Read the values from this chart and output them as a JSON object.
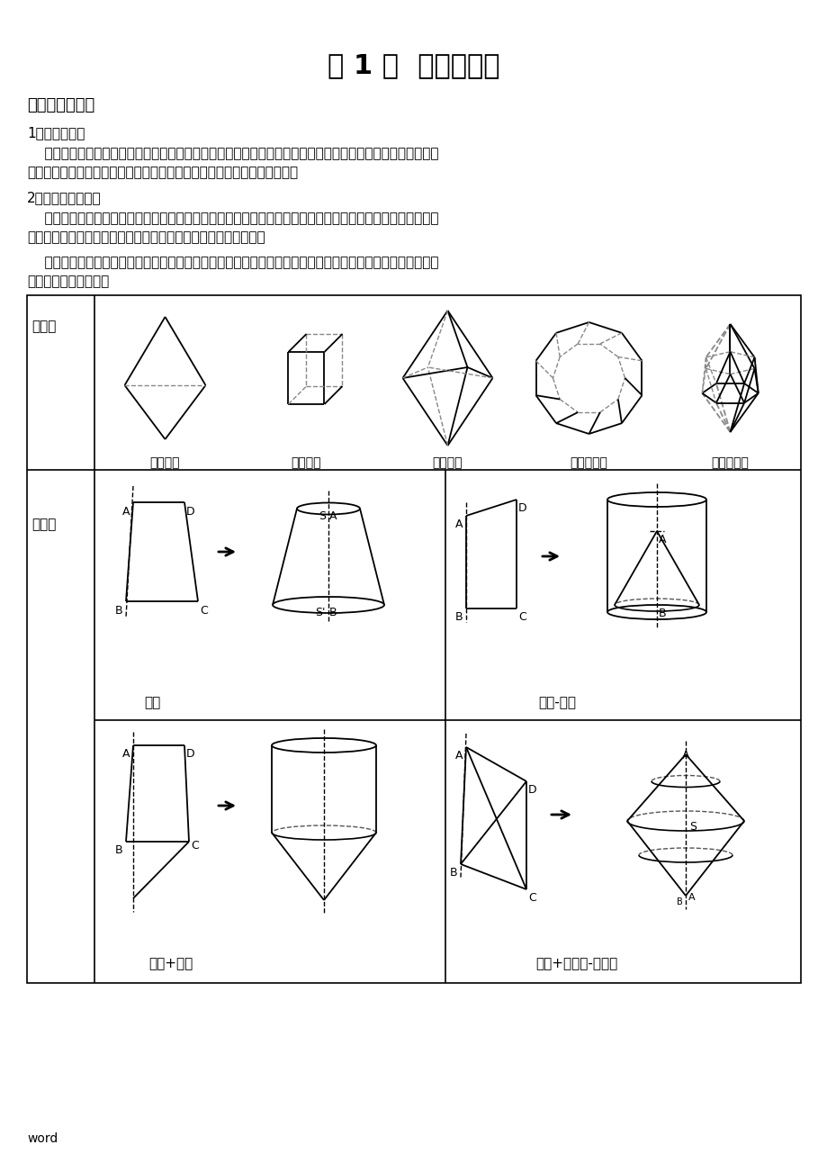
{
  "title": "第 1 讲  空间几何体",
  "section1": "一、空间几何体",
  "sub1": "1、空间几何体",
  "para1": "    在我们周围存在着各种各样的物体，它们都占据着空间的一部分。如果我们只考虑这些物体的形状和大小，而",
  "para2": "不考虑其他因素，那么由这些物体抽象出来的空间图形就叫做空间几何体。",
  "sub2": "2、多面体和旋转体",
  "para3": "    多面体：由若干个平面多边形围成的几何体叫做多面体。围成多面体的各个多边形叫做多面体的面；相邻两个",
  "para4": "面的公共边叫做多面体的棱；棱与棱的公共点叫做多面体的顶点。",
  "para5": "    旋转体：由一个平面图形绕它所在的平面内的一条定直线旋转所形成的封闭几何体，叫做旋转几何体。这条定",
  "para6": "直线叫做旋转体的轴。",
  "label_miantij": "多面体",
  "label_xuanzhuanti": "旋转体",
  "label_zs4": "正四面体",
  "label_zs6": "正六面体",
  "label_zs8": "正八面体",
  "label_zs12": "正十二面体",
  "label_zs20": "正二十面体",
  "label_yuantai": "圆台",
  "label_yuanzhu_yuanzhui": "圆柱-圆锥",
  "label_yuanzhu_yuanzhui2": "圆柱+圆锥",
  "label_yuantai_combo": "圆台+大圆锥-小圆锥",
  "bg_color": "#ffffff",
  "text_color": "#000000",
  "word_label": "word"
}
